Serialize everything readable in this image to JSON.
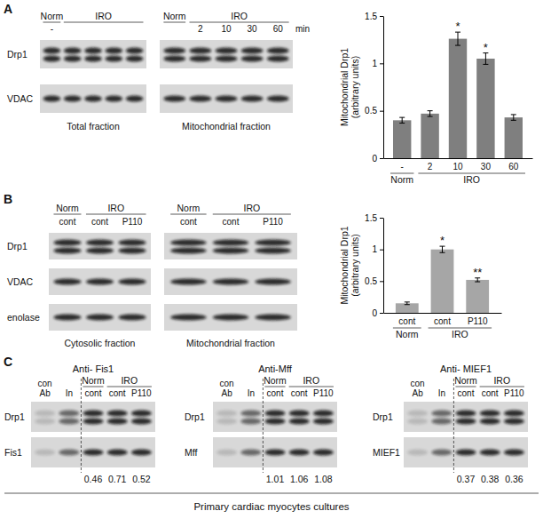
{
  "chart_data": [
    {
      "type": "bar",
      "y_label": [
        "Mitochondrial Drp1",
        "(arbitrary units)"
      ],
      "categories": [
        "-",
        "2",
        "10",
        "30",
        "60"
      ],
      "category_groups": [
        "Norm",
        "IRO",
        "IRO",
        "IRO",
        "IRO"
      ],
      "values": [
        0.4,
        0.47,
        1.26,
        1.05,
        0.43
      ],
      "errors": [
        0.03,
        0.03,
        0.07,
        0.06,
        0.03
      ],
      "significance": [
        null,
        null,
        "*",
        "*",
        null
      ],
      "color": "#7f7f7f",
      "ylim": [
        0,
        1.5
      ],
      "yticks": [
        0,
        0.5,
        1,
        1.5
      ]
    },
    {
      "type": "bar",
      "y_label": [
        "Mitochondrial Drp1",
        "(arbitrary units)"
      ],
      "categories": [
        "cont",
        "cont",
        "P110"
      ],
      "category_groups": [
        "Norm",
        "IRO",
        "IRO"
      ],
      "values": [
        0.15,
        1,
        0.52
      ],
      "errors": [
        0.02,
        0.05,
        0.03
      ],
      "significance": [
        null,
        "*",
        "**"
      ],
      "color": "#a6a6a6",
      "ylim": [
        0,
        1.5
      ],
      "yticks": [
        0,
        0.5,
        1,
        1.5
      ]
    }
  ],
  "figure": {
    "panels": [
      {
        "label": "A",
        "blots": [
          {
            "caption": "Total fraction",
            "groups": [
              {
                "name": "Norm",
                "lanes": [
                  "-"
                ]
              },
              {
                "name": "IRO",
                "lanes": [
                  null,
                  null,
                  null,
                  null
                ]
              }
            ],
            "rows": [
              "Drp1",
              "VDAC"
            ]
          },
          {
            "caption": "Mitochondrial fraction",
            "groups": [
              {
                "name": "Norm",
                "lanes": [
                  null
                ]
              },
              {
                "name": "IRO",
                "lanes": [
                  "2",
                  "10",
                  "30",
                  "60"
                ]
              }
            ],
            "rows": [
              null,
              null
            ],
            "unit": "min"
          }
        ]
      },
      {
        "label": "B",
        "blots": [
          {
            "caption": "Cytosolic fraction",
            "groups": [
              {
                "name": "Norm",
                "lanes": [
                  "cont"
                ]
              },
              {
                "name": "IRO",
                "lanes": [
                  "cont",
                  "P110"
                ]
              }
            ],
            "rows": [
              "Drp1",
              "VDAC",
              "enolase"
            ]
          },
          {
            "caption": "Mitochondrial fraction",
            "groups": [
              {
                "name": "Norm",
                "lanes": [
                  "cont"
                ]
              },
              {
                "name": "IRO",
                "lanes": [
                  "cont",
                  "P110"
                ]
              }
            ],
            "rows": [
              null,
              null,
              null
            ]
          }
        ]
      },
      {
        "label": "C",
        "blots": [
          {
            "title": "Anti- Fis1",
            "pre_lanes": [
              [
                "con",
                "Ab"
              ],
              [
                "In"
              ]
            ],
            "groups": [
              {
                "name": "Norm",
                "lanes": [
                  "cont"
                ]
              },
              {
                "name": "IRO",
                "lanes": [
                  "cont",
                  "P110"
                ]
              }
            ],
            "rows": [
              "Drp1",
              "Fis1"
            ],
            "ratios": [
              0.46,
              0.71,
              0.52
            ]
          },
          {
            "title": "Anti-Mff",
            "pre_lanes": [
              [
                "con",
                "Ab"
              ],
              [
                "In"
              ]
            ],
            "groups": [
              {
                "name": "Norm",
                "lanes": [
                  "cont"
                ]
              },
              {
                "name": "IRO",
                "lanes": [
                  "cont",
                  "P110"
                ]
              }
            ],
            "rows": [
              "Drp1",
              "Mff"
            ],
            "ratios": [
              1.01,
              1.06,
              1.08
            ]
          },
          {
            "title": "Anti- MIEF1",
            "pre_lanes": [
              [
                "con",
                "Ab"
              ],
              [
                "In"
              ]
            ],
            "groups": [
              {
                "name": "Norm",
                "lanes": [
                  "cont"
                ]
              },
              {
                "name": "IRO",
                "lanes": [
                  "cont",
                  "P110"
                ]
              }
            ],
            "rows": [
              "Drp1",
              "MIEF1"
            ],
            "ratios": [
              0.37,
              0.38,
              0.36
            ]
          }
        ],
        "footer": "Primary cardiac myocytes cultures"
      }
    ]
  }
}
